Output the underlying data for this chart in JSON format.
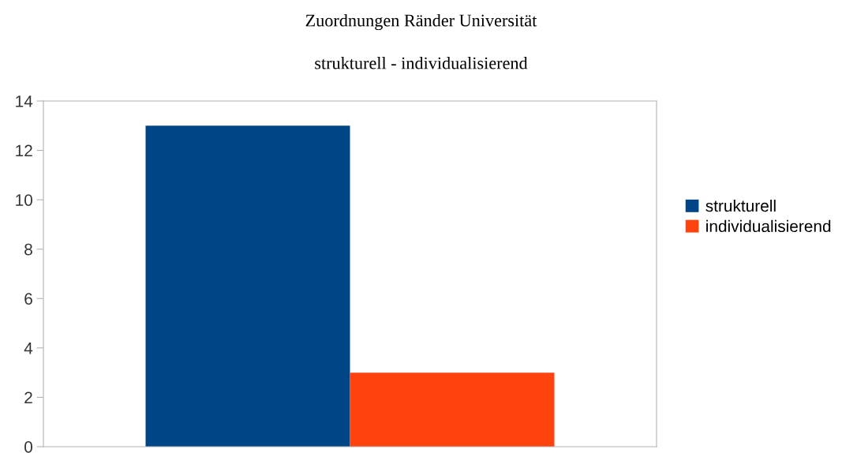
{
  "chart_data": {
    "type": "bar",
    "title": "Zuordnungen Ränder Universität",
    "subtitle": "strukturell - individualisierend",
    "categories": [
      null
    ],
    "series": [
      {
        "name": "strukturell",
        "color": "#004586",
        "values": [
          13
        ]
      },
      {
        "name": "individualisierend",
        "color": "#ff420e",
        "values": [
          3
        ]
      }
    ],
    "ylim": [
      0,
      14
    ],
    "yticks": [
      0,
      2,
      4,
      6,
      8,
      10,
      12,
      14
    ],
    "grid": false,
    "legend": "right"
  }
}
